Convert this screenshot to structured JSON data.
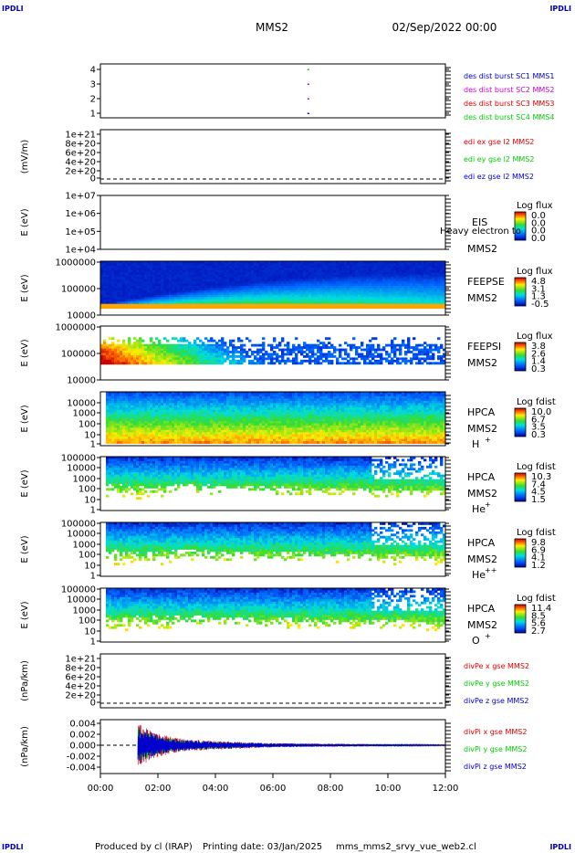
{
  "corners": {
    "tl": "IPDLI",
    "tr": "IPDLI",
    "bl": "IPDLI",
    "br": "IPDLI"
  },
  "header": {
    "spacecraft": "MMS2",
    "datetime": "02/Sep/2022 00:00"
  },
  "footer": {
    "produced_by": "Produced by cl (IRAP)",
    "printing_date": "Printing date: 03/Jan/2025",
    "filename": "mms_mms2_srvy_vue_web2.cl"
  },
  "time_axis": {
    "ticks": [
      "00:00",
      "02:00",
      "04:00",
      "06:00",
      "08:00",
      "10:00",
      "12:00"
    ]
  },
  "colors": {
    "red": "#dd0000",
    "magenta": "#cc00cc",
    "green": "#00cc00",
    "blue": "#0000cc",
    "spec_hot": "#dd2200",
    "spec_cold": "#0000cc"
  },
  "panels": {
    "burst": {
      "yticks": [
        "4",
        "3",
        "2",
        "1"
      ],
      "legend": [
        "des dist burst SC1 MMS1",
        "des dist burst SC2 MMS2",
        "des dist burst SC3 MMS3",
        "des dist burst SC4 MMS4"
      ]
    },
    "edi": {
      "ylabel": "(mV/m)",
      "yticks": [
        "1e+21",
        "8e+20",
        "6e+20",
        "4e+20",
        "2e+20",
        "0"
      ],
      "legend": [
        "edi ex gse l2 MMS2",
        "edi ey gse l2 MMS2",
        "edi ez gse l2 MMS2"
      ]
    },
    "eis": {
      "ylabel": "E (eV)",
      "yticks": [
        "1e+07",
        "1e+06",
        "1e+05",
        "1e+04"
      ],
      "name": "EIS",
      "overlay": "Heavy electron to",
      "sc": "MMS2",
      "cbar_title": "Log flux",
      "cbar_ticks": [
        "0.0",
        "0.0",
        "0.0",
        "0.0"
      ]
    },
    "feepse": {
      "ylabel": "E (eV)",
      "yticks": [
        "1000000",
        "100000",
        "10000"
      ],
      "name": "FEEPSE",
      "sc": "MMS2",
      "cbar_title": "Log flux",
      "cbar_ticks": [
        "4.8",
        "3.1",
        "1.3",
        "-0.5"
      ]
    },
    "feepsi": {
      "ylabel": "E (eV)",
      "yticks": [
        "1000000",
        "100000",
        "10000"
      ],
      "name": "FEEPSI",
      "sc": "MMS2",
      "cbar_title": "Log flux",
      "cbar_ticks": [
        "3.8",
        "2.6",
        "1.4",
        "0.3"
      ]
    },
    "hpca_h": {
      "ylabel": "E (eV)",
      "yticks": [
        "10000",
        "1000",
        "100",
        "10",
        "1"
      ],
      "name": "HPCA",
      "sc": "MMS2",
      "species": "H",
      "charge": "+",
      "cbar_title": "Log fdist",
      "cbar_ticks": [
        "10.0",
        "6.7",
        "3.5",
        "0.3"
      ]
    },
    "hpca_he": {
      "ylabel": "E (eV)",
      "yticks": [
        "100000",
        "10000",
        "1000",
        "100",
        "10",
        "1"
      ],
      "name": "HPCA",
      "sc": "MMS2",
      "species": "He",
      "charge": "+",
      "cbar_title": "Log fdist",
      "cbar_ticks": [
        "10.3",
        "7.4",
        "4.5",
        "1.5"
      ]
    },
    "hpca_hepp": {
      "ylabel": "E (eV)",
      "yticks": [
        "100000",
        "10000",
        "1000",
        "100",
        "10",
        "1"
      ],
      "name": "HPCA",
      "sc": "MMS2",
      "species": "He",
      "charge": "++",
      "cbar_title": "Log fdist",
      "cbar_ticks": [
        "9.8",
        "6.9",
        "4.1",
        "1.2"
      ]
    },
    "hpca_o": {
      "ylabel": "E (eV)",
      "yticks": [
        "100000",
        "10000",
        "1000",
        "100",
        "10",
        "1"
      ],
      "name": "HPCA",
      "sc": "MMS2",
      "species": "O",
      "charge": "+",
      "cbar_title": "Log fdist",
      "cbar_ticks": [
        "11.4",
        "8.5",
        "5.6",
        "2.7"
      ]
    },
    "divpe": {
      "ylabel": "(nPa/km)",
      "yticks": [
        "1e+21",
        "8e+20",
        "6e+20",
        "4e+20",
        "2e+20",
        "0"
      ],
      "legend": [
        "divPe x gse MMS2",
        "divPe y gse MMS2",
        "divPe z gse MMS2"
      ]
    },
    "divpi": {
      "ylabel": "(nPa/km)",
      "yticks": [
        "0.004",
        "0.002",
        "0.000",
        "-0.002",
        "-0.004"
      ],
      "legend": [
        "divPi x gse MMS2",
        "divPi y gse MMS2",
        "divPi z gse MMS2"
      ]
    }
  },
  "chart_data": {
    "type": "heatmap",
    "title": "MMS2",
    "x_range_hours": [
      0,
      12
    ],
    "burst_markers": {
      "time_hours": 7.2,
      "sc": [
        1,
        2,
        3,
        4
      ]
    },
    "divpi_envelope": {
      "x_hours": [
        1.3,
        1.5,
        1.7,
        2.0,
        2.5,
        3.0,
        4.0,
        5.0,
        6.0,
        8.0,
        10.0,
        12.0
      ],
      "amplitude": [
        0.004,
        0.0035,
        0.003,
        0.0022,
        0.0015,
        0.0011,
        0.0008,
        0.0006,
        0.0004,
        0.0003,
        0.0002,
        0.0001
      ]
    }
  }
}
